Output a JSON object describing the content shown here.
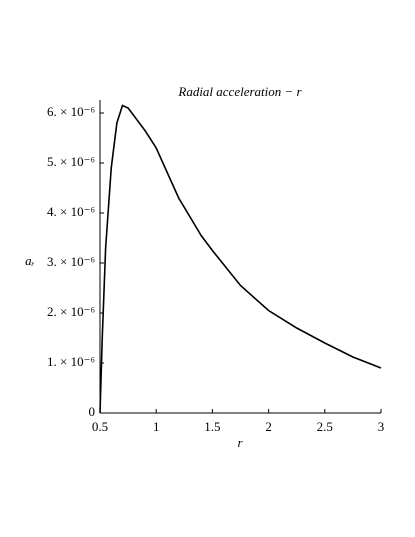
{
  "chart_data": {
    "type": "line",
    "title": "Radial acceleration − r",
    "x_label": "r",
    "y_label": "aᵣ",
    "x": [
      0.5,
      0.52,
      0.55,
      0.6,
      0.65,
      0.7,
      0.75,
      0.8,
      0.9,
      1.0,
      1.2,
      1.4,
      1.5,
      1.75,
      2.0,
      2.25,
      2.5,
      2.75,
      3.0
    ],
    "series": [
      {
        "color": "#000000",
        "values": [
          0,
          1.5e-06,
          3.3e-06,
          4.9e-06,
          5.8e-06,
          6.15e-06,
          6.1e-06,
          5.95e-06,
          5.65e-06,
          5.3e-06,
          4.3e-06,
          3.55e-06,
          3.25e-06,
          2.55e-06,
          2.05e-06,
          1.7e-06,
          1.4e-06,
          1.12e-06,
          9e-07
        ]
      }
    ],
    "xlim": [
      0.5,
      3
    ],
    "ylim": [
      0,
      6.26e-06
    ],
    "xticks": [
      0.5,
      1,
      1.5,
      2,
      2.5,
      3
    ],
    "yticks": [
      0,
      {
        "value": 1e-06,
        "label": "1. × 10⁻⁶"
      },
      {
        "value": 2e-06,
        "label": "2. × 10⁻⁶"
      },
      {
        "value": 3e-06,
        "label": "3. × 10⁻⁶"
      },
      {
        "value": 4e-06,
        "label": "4. × 10⁻⁶"
      },
      {
        "value": 5e-06,
        "label": "5. × 10⁻⁶"
      },
      {
        "value": 6e-06,
        "label": "6. × 10⁻⁶"
      }
    ]
  }
}
